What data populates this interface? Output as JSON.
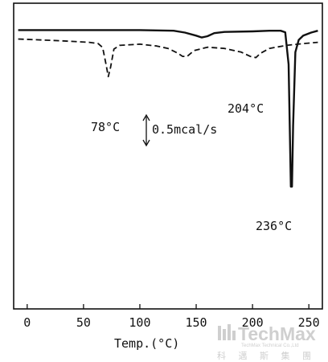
{
  "chart_data": {
    "type": "line",
    "title": "",
    "xlabel": "Temp.(°C)",
    "ylabel": "",
    "xlim": [
      -12,
      262
    ],
    "ylim": [
      0,
      1
    ],
    "grid": false,
    "legend": "none",
    "x_ticks": [
      "0",
      "50",
      "100",
      "150",
      "200",
      "250"
    ],
    "series": [
      {
        "style": "solid",
        "points": [
          [
            -8,
            0.912
          ],
          [
            100,
            0.912
          ],
          [
            130,
            0.91
          ],
          [
            140,
            0.904
          ],
          [
            150,
            0.894
          ],
          [
            155,
            0.888
          ],
          [
            160,
            0.892
          ],
          [
            166,
            0.902
          ],
          [
            175,
            0.906
          ],
          [
            200,
            0.908
          ],
          [
            215,
            0.91
          ],
          [
            225,
            0.91
          ],
          [
            229,
            0.905
          ],
          [
            232,
            0.8
          ],
          [
            234,
            0.4
          ],
          [
            235,
            0.4
          ],
          [
            236,
            0.6
          ],
          [
            238,
            0.84
          ],
          [
            241,
            0.88
          ],
          [
            245,
            0.894
          ],
          [
            252,
            0.904
          ],
          [
            258,
            0.91
          ]
        ]
      },
      {
        "style": "dashed",
        "points": [
          [
            -8,
            0.883
          ],
          [
            30,
            0.877
          ],
          [
            55,
            0.872
          ],
          [
            63,
            0.868
          ],
          [
            67,
            0.855
          ],
          [
            70,
            0.8
          ],
          [
            72,
            0.76
          ],
          [
            74,
            0.79
          ],
          [
            77,
            0.85
          ],
          [
            82,
            0.862
          ],
          [
            100,
            0.866
          ],
          [
            115,
            0.86
          ],
          [
            125,
            0.852
          ],
          [
            133,
            0.838
          ],
          [
            138,
            0.826
          ],
          [
            142,
            0.826
          ],
          [
            148,
            0.845
          ],
          [
            160,
            0.856
          ],
          [
            175,
            0.852
          ],
          [
            190,
            0.84
          ],
          [
            198,
            0.826
          ],
          [
            203,
            0.822
          ],
          [
            207,
            0.836
          ],
          [
            215,
            0.852
          ],
          [
            230,
            0.862
          ],
          [
            245,
            0.868
          ],
          [
            258,
            0.872
          ]
        ]
      }
    ],
    "annotations": [
      {
        "text": "78°C",
        "x": 72
      },
      {
        "text": "204°C",
        "x": 203
      },
      {
        "text": "236°C",
        "x": 235
      },
      {
        "text": "0.5mcal/s",
        "x": 110
      }
    ]
  },
  "watermark": {
    "brand": "TechMax",
    "tagline": "TechMax Technical Co.,Ltd",
    "chinese": "科 邁 斯 集 團"
  }
}
